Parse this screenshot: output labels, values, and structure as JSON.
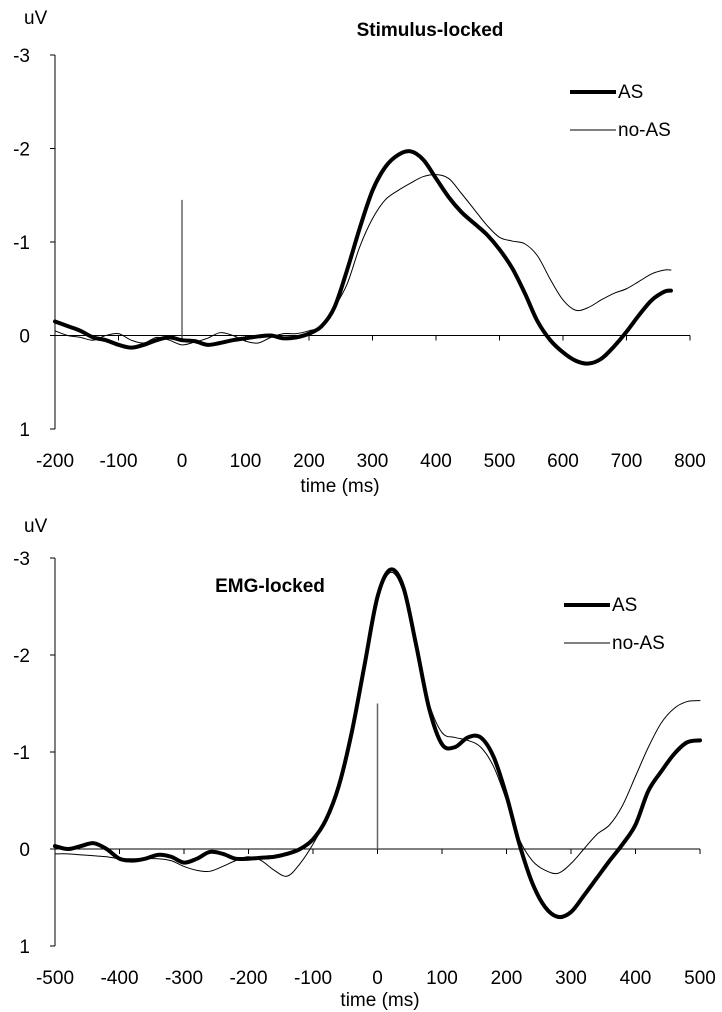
{
  "chart_data": [
    {
      "type": "line",
      "title": "Stimulus-locked",
      "xlabel": "time (ms)",
      "ylabel": "uV",
      "xlim": [
        -200,
        800
      ],
      "ylim": [
        -3,
        1
      ],
      "y_inverted": true,
      "xticks": [
        "-200",
        "-100",
        "0",
        "100",
        "200",
        "300",
        "400",
        "500",
        "600",
        "700",
        "800"
      ],
      "yticks": [
        "-3",
        "-2",
        "-1",
        "0",
        "1"
      ],
      "grid": false,
      "legend_position": "top-right",
      "marker": {
        "x": 0,
        "y_from": 0,
        "y_to": -1.45
      },
      "series": [
        {
          "name": "AS",
          "color": "#000000",
          "x": [
            -200,
            -180,
            -160,
            -140,
            -120,
            -100,
            -80,
            -60,
            -40,
            -20,
            0,
            20,
            40,
            60,
            80,
            100,
            120,
            140,
            160,
            180,
            200,
            220,
            240,
            260,
            280,
            300,
            320,
            340,
            360,
            380,
            400,
            420,
            440,
            460,
            480,
            500,
            520,
            540,
            560,
            580,
            600,
            620,
            640,
            660,
            680,
            700,
            720,
            740,
            760,
            770
          ],
          "y": [
            -0.15,
            -0.1,
            -0.05,
            0.02,
            0.05,
            0.1,
            0.13,
            0.1,
            0.05,
            0.02,
            0.05,
            0.06,
            0.1,
            0.08,
            0.05,
            0.03,
            0.01,
            0.0,
            0.03,
            0.02,
            -0.02,
            -0.1,
            -0.3,
            -0.7,
            -1.15,
            -1.55,
            -1.8,
            -1.93,
            -1.97,
            -1.88,
            -1.68,
            -1.48,
            -1.32,
            -1.2,
            -1.08,
            -0.92,
            -0.72,
            -0.45,
            -0.15,
            0.05,
            0.18,
            0.27,
            0.3,
            0.25,
            0.12,
            -0.04,
            -0.22,
            -0.38,
            -0.47,
            -0.48
          ]
        },
        {
          "name": "no-AS",
          "color": "#000000",
          "x": [
            -200,
            -180,
            -160,
            -140,
            -120,
            -100,
            -80,
            -60,
            -40,
            -20,
            0,
            20,
            40,
            60,
            80,
            100,
            120,
            140,
            160,
            180,
            200,
            220,
            240,
            260,
            280,
            300,
            320,
            340,
            360,
            380,
            400,
            420,
            440,
            460,
            480,
            500,
            520,
            540,
            560,
            580,
            600,
            620,
            640,
            660,
            680,
            700,
            720,
            740,
            760,
            770
          ],
          "y": [
            -0.05,
            0.0,
            0.02,
            0.05,
            0.0,
            -0.02,
            0.05,
            0.08,
            0.02,
            0.05,
            0.1,
            0.07,
            0.03,
            -0.03,
            0.0,
            0.06,
            0.08,
            0.02,
            -0.02,
            -0.02,
            -0.05,
            -0.1,
            -0.3,
            -0.55,
            -0.95,
            -1.25,
            -1.45,
            -1.55,
            -1.63,
            -1.7,
            -1.72,
            -1.68,
            -1.52,
            -1.35,
            -1.18,
            -1.05,
            -1.01,
            -0.98,
            -0.85,
            -0.6,
            -0.38,
            -0.27,
            -0.3,
            -0.38,
            -0.45,
            -0.5,
            -0.58,
            -0.66,
            -0.7,
            -0.7
          ]
        }
      ]
    },
    {
      "type": "line",
      "title": "EMG-locked",
      "xlabel": "time (ms)",
      "ylabel": "uV",
      "xlim": [
        -500,
        500
      ],
      "ylim": [
        -3,
        1
      ],
      "y_inverted": true,
      "xticks": [
        "-500",
        "-400",
        "-300",
        "-200",
        "-100",
        "0",
        "100",
        "200",
        "300",
        "400",
        "500"
      ],
      "yticks": [
        "-3",
        "-2",
        "-1",
        "0",
        "1"
      ],
      "grid": false,
      "legend_position": "top-right",
      "marker": {
        "x": 0,
        "y_from": 0,
        "y_to": -1.5
      },
      "series": [
        {
          "name": "AS",
          "color": "#000000",
          "x": [
            -500,
            -480,
            -460,
            -440,
            -420,
            -400,
            -380,
            -360,
            -340,
            -320,
            -300,
            -280,
            -260,
            -240,
            -220,
            -200,
            -180,
            -160,
            -140,
            -120,
            -100,
            -80,
            -60,
            -40,
            -20,
            0,
            20,
            40,
            60,
            80,
            100,
            120,
            140,
            160,
            180,
            200,
            220,
            240,
            260,
            280,
            300,
            320,
            340,
            360,
            380,
            400,
            420,
            440,
            460,
            480,
            500
          ],
          "y": [
            -0.03,
            0.0,
            -0.03,
            -0.06,
            0.0,
            0.1,
            0.12,
            0.1,
            0.06,
            0.08,
            0.14,
            0.1,
            0.03,
            0.05,
            0.1,
            0.1,
            0.09,
            0.08,
            0.05,
            0.0,
            -0.1,
            -0.3,
            -0.65,
            -1.2,
            -1.9,
            -2.6,
            -2.88,
            -2.7,
            -2.1,
            -1.45,
            -1.08,
            -1.05,
            -1.15,
            -1.15,
            -0.95,
            -0.55,
            -0.05,
            0.35,
            0.6,
            0.7,
            0.65,
            0.48,
            0.3,
            0.12,
            -0.05,
            -0.25,
            -0.6,
            -0.8,
            -0.98,
            -1.1,
            -1.12
          ]
        },
        {
          "name": "no-AS",
          "color": "#000000",
          "x": [
            -500,
            -480,
            -460,
            -440,
            -420,
            -400,
            -380,
            -360,
            -340,
            -320,
            -300,
            -280,
            -260,
            -240,
            -220,
            -200,
            -180,
            -160,
            -140,
            -120,
            -100,
            -80,
            -60,
            -40,
            -20,
            0,
            20,
            40,
            60,
            80,
            100,
            120,
            140,
            160,
            180,
            200,
            220,
            240,
            260,
            280,
            300,
            320,
            340,
            360,
            380,
            400,
            420,
            440,
            460,
            480,
            500
          ],
          "y": [
            0.05,
            0.05,
            0.06,
            0.07,
            0.08,
            0.1,
            0.1,
            0.1,
            0.1,
            0.12,
            0.18,
            0.22,
            0.23,
            0.18,
            0.12,
            0.08,
            0.12,
            0.22,
            0.28,
            0.15,
            -0.05,
            -0.3,
            -0.65,
            -1.2,
            -1.85,
            -2.55,
            -2.85,
            -2.65,
            -2.05,
            -1.5,
            -1.2,
            -1.15,
            -1.12,
            -1.05,
            -0.85,
            -0.5,
            -0.1,
            0.12,
            0.22,
            0.25,
            0.15,
            0.0,
            -0.15,
            -0.25,
            -0.45,
            -0.75,
            -1.05,
            -1.3,
            -1.45,
            -1.52,
            -1.53
          ]
        }
      ]
    }
  ]
}
